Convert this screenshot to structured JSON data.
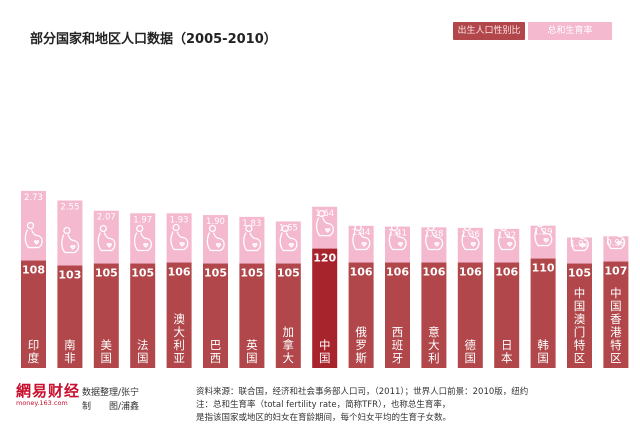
{
  "header": {
    "title": "部分国家和地区人口数据（2005-2010）"
  },
  "legend": {
    "sex_ratio": "出生人口性别比",
    "fertility": "总和生育率"
  },
  "colors": {
    "bar": "#b1474a",
    "bar_highlight": "#a8242c",
    "fertility_fill": "#f4b8cf",
    "icon_stroke": "#ffffff"
  },
  "chart_data": {
    "type": "bar",
    "title": "部分国家和地区人口数据（2005-2010）",
    "categories": [
      "印度",
      "南非",
      "美国",
      "法国",
      "澳大利亚",
      "巴西",
      "英国",
      "加拿大",
      "中国",
      "俄罗斯",
      "西班牙",
      "意大利",
      "德国",
      "日本",
      "韩国",
      "中国澳门特区",
      "中国香港特区"
    ],
    "series": [
      {
        "name": "出生人口性别比",
        "values": [
          108,
          103,
          105,
          105,
          106,
          105,
          105,
          105,
          120,
          106,
          106,
          106,
          106,
          106,
          110,
          105,
          107
        ]
      },
      {
        "name": "总和生育率",
        "values": [
          2.73,
          2.55,
          2.07,
          1.97,
          1.93,
          1.9,
          1.83,
          1.65,
          1.64,
          1.44,
          1.41,
          1.38,
          1.36,
          1.32,
          1.29,
          1.02,
          0.99
        ]
      }
    ],
    "value_labels_ratio": [
      "108",
      "103",
      "105",
      "105",
      "106",
      "105",
      "105",
      "105",
      "120",
      "106",
      "106",
      "106",
      "106",
      "106",
      "110",
      "105",
      "107"
    ],
    "value_labels_tfr": [
      "2.73",
      "2.55",
      "2.07",
      "1.97",
      "1.93",
      "1.90",
      "1.83",
      "1.65",
      "1.64",
      "1.44",
      "1.41",
      "1.38",
      "1.36",
      "1.32",
      "1.29",
      "1.02",
      "0.99"
    ],
    "highlight_category": "中国",
    "legend_position": "top-right",
    "grid": false
  },
  "footer": {
    "logo_main": "網易财经",
    "logo_sub": "money.163.com",
    "credit_data": "数据整理/张宁",
    "credit_design": "制　　图/浦鑫",
    "source_line": "资料来源：联合国，经济和社会事务部人口司，（2011）；世界人口前景：2010版，纽约",
    "note_line1": "注：总和生育率（total fertility rate，简称TFR），也称总生育率，",
    "note_line2": "是指该国家或地区的妇女在育龄期间，每个妇女平均的生育子女数。"
  }
}
